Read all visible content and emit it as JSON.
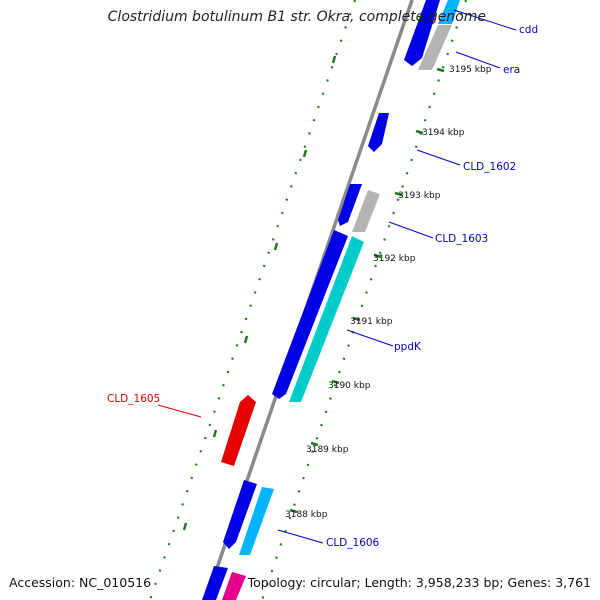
{
  "title": "Clostridium botulinum B1 str. Okra, complete genome",
  "footer": {
    "accession": "Accession: NC_010516",
    "summary": "Topology: circular; Length: 3,958,233 bp; Genes: 3,761"
  },
  "colors": {
    "backbone": "#8a8a8a",
    "tick": "#1f7a1f",
    "label": "#0000cc",
    "label_highlight": "#dd0000",
    "feature_blue": "#0000e6",
    "feature_cyan": "#00cccc",
    "feature_lightblue": "#00b4ff",
    "feature_gray": "#b4b4b4",
    "feature_red": "#e60000",
    "feature_magenta": "#e6008c"
  },
  "ticks": [
    {
      "label": "3195 kbp"
    },
    {
      "label": "3194 kbp"
    },
    {
      "label": "3193 kbp"
    },
    {
      "label": "3192 kbp"
    },
    {
      "label": "3191 kbp"
    },
    {
      "label": "3190 kbp"
    },
    {
      "label": "3189 kbp"
    },
    {
      "label": "3188 kbp"
    }
  ],
  "gene_labels": [
    {
      "name": "cdd"
    },
    {
      "name": "era"
    },
    {
      "name": "CLD_1602"
    },
    {
      "name": "CLD_1603"
    },
    {
      "name": "ppdK"
    },
    {
      "name": "CLD_1605"
    },
    {
      "name": "CLD_1606"
    }
  ]
}
